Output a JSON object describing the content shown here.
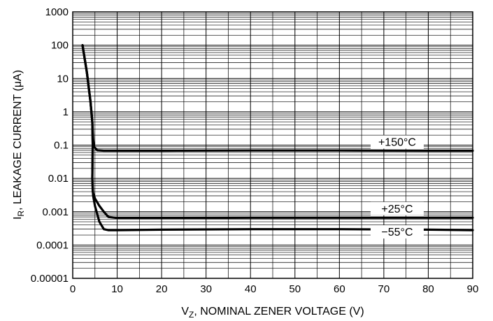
{
  "chart_data": {
    "type": "line",
    "title": "",
    "xlabel_main": "V",
    "xlabel_sub": "Z",
    "xlabel_rest": ", NOMINAL ZENER VOLTAGE (V)",
    "ylabel_main": "I",
    "ylabel_sub": "R",
    "ylabel_rest": ", LEAKAGE CURRENT (μA)",
    "xlim": [
      0,
      90
    ],
    "ylim": [
      1e-05,
      1000
    ],
    "yscale": "log",
    "grid": true,
    "x_ticks": [
      "0",
      "10",
      "20",
      "30",
      "40",
      "50",
      "60",
      "70",
      "80",
      "90"
    ],
    "y_ticks": [
      "0.00001",
      "0.0001",
      "0.001",
      "0.01",
      "0.1",
      "1",
      "10",
      "100",
      "1000"
    ],
    "series": [
      {
        "name": "+150°C",
        "x": [
          2.2,
          3.2,
          4.0,
          4.4,
          4.6,
          4.8,
          5.5,
          7,
          10,
          20,
          40,
          60,
          80,
          90
        ],
        "y": [
          100,
          15,
          2,
          0.5,
          0.15,
          0.09,
          0.07,
          0.068,
          0.068,
          0.068,
          0.069,
          0.069,
          0.068,
          0.068
        ]
      },
      {
        "name": "+25°C",
        "x": [
          2.2,
          3.2,
          4.0,
          4.4,
          4.5,
          4.4,
          4.5,
          5,
          6,
          7,
          8,
          10,
          20,
          40,
          60,
          80,
          90
        ],
        "y": [
          100,
          15,
          2,
          0.5,
          0.1,
          0.01,
          0.004,
          0.0025,
          0.0015,
          0.001,
          0.0007,
          0.00065,
          0.00065,
          0.00066,
          0.00066,
          0.00066,
          0.00066
        ]
      },
      {
        "name": "−55°C",
        "x": [
          2.2,
          3.2,
          4.0,
          4.4,
          4.5,
          4.4,
          4.6,
          5,
          6,
          7,
          8,
          10,
          20,
          40,
          60,
          80,
          90
        ],
        "y": [
          100,
          15,
          2,
          0.5,
          0.1,
          0.01,
          0.003,
          0.0015,
          0.0005,
          0.0003,
          0.00028,
          0.00028,
          0.00029,
          0.0003,
          0.0003,
          0.00029,
          0.00028
        ]
      }
    ],
    "labels": [
      {
        "text": "+150°C",
        "x": 73,
        "y": 0.1
      },
      {
        "text": "+25°C",
        "x": 73,
        "y": 0.001
      },
      {
        "text": "−55°C",
        "x": 73,
        "y": 0.0002
      }
    ],
    "color": "#000000"
  }
}
